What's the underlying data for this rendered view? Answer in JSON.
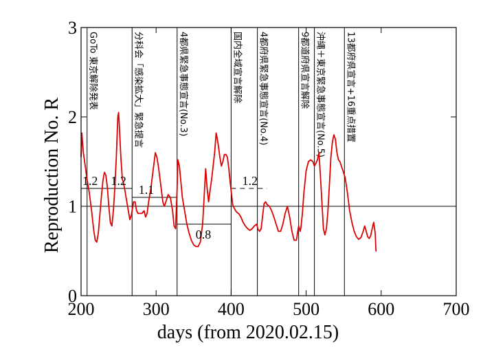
{
  "chart_data": {
    "type": "line",
    "title": "",
    "xlabel": "days   (from 2020.02.15)",
    "ylabel": "Reproduction No.  R",
    "xlim": [
      200,
      700
    ],
    "ylim": [
      0,
      3
    ],
    "xticks": [
      200,
      300,
      400,
      500,
      600,
      700
    ],
    "yticks": [
      0,
      1,
      2,
      3
    ],
    "grid": false,
    "series": [
      {
        "color": "#dd0000",
        "x": [
          200,
          201,
          203,
          205,
          208,
          211,
          214,
          217,
          219,
          221,
          223,
          225,
          227,
          229,
          231,
          233,
          235,
          237,
          239,
          241,
          243,
          245,
          247,
          249,
          250,
          251,
          253,
          255,
          256,
          258,
          260,
          263,
          265,
          267,
          269,
          270,
          272,
          274,
          276,
          278,
          281,
          284,
          286,
          288,
          290,
          293,
          296,
          299,
          301,
          303,
          306,
          309,
          311,
          313,
          316,
          319,
          322,
          324,
          326,
          328,
          329,
          331,
          333,
          335,
          338,
          341,
          344,
          347,
          350,
          353,
          356,
          359,
          362,
          364,
          366,
          368,
          370,
          372,
          374,
          376,
          378,
          380,
          381,
          383,
          385,
          387,
          389,
          391,
          393,
          395,
          397,
          399,
          401,
          402,
          404,
          406,
          408,
          410,
          413,
          416,
          419,
          422,
          425,
          428,
          431,
          434,
          436,
          438,
          440,
          442,
          444,
          446,
          448,
          451,
          454,
          457,
          460,
          463,
          466,
          469,
          472,
          475,
          478,
          481,
          484,
          487,
          490,
          492,
          493,
          495,
          497,
          500,
          503,
          506,
          509,
          511,
          513,
          515,
          517,
          519,
          521,
          523,
          525,
          527,
          529,
          531,
          533,
          535,
          537,
          539,
          541,
          543,
          545,
          547,
          549,
          552,
          555,
          558,
          561,
          564,
          567,
          570,
          573,
          576,
          578,
          580,
          582,
          584,
          586,
          588,
          590,
          592,
          593,
          594
        ],
        "y": [
          1.55,
          1.82,
          1.6,
          1.48,
          1.3,
          1.15,
          0.95,
          0.72,
          0.62,
          0.6,
          0.7,
          0.9,
          1.1,
          1.28,
          1.38,
          1.35,
          1.22,
          1.0,
          0.82,
          0.78,
          0.95,
          1.2,
          1.55,
          2.0,
          2.05,
          1.9,
          1.55,
          1.3,
          1.28,
          1.2,
          1.1,
          0.95,
          0.85,
          0.9,
          1.0,
          1.05,
          1.05,
          0.95,
          0.92,
          0.92,
          0.92,
          0.95,
          0.88,
          0.92,
          1.05,
          1.2,
          1.4,
          1.6,
          1.55,
          1.45,
          1.25,
          1.05,
          1.0,
          1.05,
          1.13,
          1.1,
          0.95,
          0.78,
          0.75,
          1.2,
          1.52,
          1.45,
          1.28,
          1.1,
          0.95,
          0.8,
          0.7,
          0.62,
          0.57,
          0.55,
          0.55,
          0.6,
          0.8,
          1.1,
          1.42,
          1.2,
          1.05,
          1.18,
          1.3,
          1.45,
          1.6,
          1.82,
          1.78,
          1.68,
          1.55,
          1.45,
          1.5,
          1.58,
          1.58,
          1.55,
          1.42,
          1.25,
          1.1,
          1.02,
          0.98,
          0.95,
          0.93,
          0.92,
          0.88,
          0.82,
          0.78,
          0.75,
          0.73,
          0.75,
          0.78,
          0.8,
          0.74,
          0.72,
          0.75,
          0.9,
          1.03,
          1.05,
          1.02,
          1.0,
          0.95,
          0.88,
          0.8,
          0.72,
          0.72,
          0.8,
          0.92,
          1.0,
          0.88,
          0.72,
          0.62,
          0.62,
          0.78,
          0.72,
          0.76,
          0.92,
          1.15,
          1.4,
          1.5,
          1.52,
          1.5,
          1.45,
          1.48,
          1.52,
          1.6,
          1.35,
          1.05,
          0.75,
          0.68,
          0.75,
          0.95,
          1.25,
          1.55,
          1.72,
          1.8,
          1.75,
          1.6,
          1.52,
          1.5,
          1.45,
          1.4,
          1.32,
          1.15,
          0.95,
          0.82,
          0.72,
          0.66,
          0.63,
          0.65,
          0.72,
          0.78,
          0.72,
          0.66,
          0.64,
          0.67,
          0.75,
          0.82,
          0.7,
          0.5,
          0.5
        ]
      }
    ],
    "reference_lines": [
      {
        "y": 1,
        "x_from": 200,
        "x_to": 700,
        "style": "solid"
      },
      {
        "y": 1.2,
        "x_from": 200,
        "x_to": 268,
        "style": "solid"
      },
      {
        "y": 1.1,
        "x_from": 268,
        "x_to": 328,
        "style": "solid"
      },
      {
        "y": 0.8,
        "x_from": 328,
        "x_to": 400,
        "style": "solid"
      },
      {
        "y": 1.2,
        "x_from": 400,
        "x_to": 448,
        "style": "dashed"
      }
    ],
    "reference_labels": [
      {
        "text": "1.2",
        "x": 212,
        "y": 1.24
      },
      {
        "text": "1.2",
        "x": 250,
        "y": 1.24
      },
      {
        "text": "1.1",
        "x": 287,
        "y": 1.14
      },
      {
        "text": "0.8",
        "x": 363,
        "y": 0.64
      },
      {
        "text": "1.2",
        "x": 425,
        "y": 1.24
      }
    ],
    "events": [
      {
        "x": 208,
        "label": "GoTo 東京解除発表"
      },
      {
        "x": 268,
        "label": "分科会「感染拡大」緊急提言"
      },
      {
        "x": 328,
        "label": "4都県緊急事態宣言(No.3)"
      },
      {
        "x": 400,
        "label": "国内全域宣言解除"
      },
      {
        "x": 435,
        "label": "4都府県緊急事態宣言(No.4)"
      },
      {
        "x": 490,
        "label": "9都道府県宣言解除"
      },
      {
        "x": 511,
        "label": "沖縄＋東京緊急事態宣言(No.5)"
      },
      {
        "x": 551,
        "label": "13都府県宣言+16重点措置"
      }
    ]
  }
}
